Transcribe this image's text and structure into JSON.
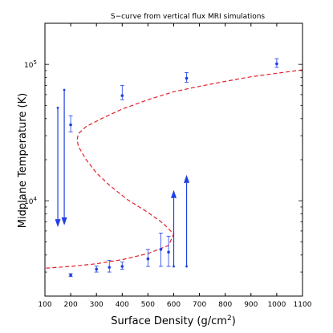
{
  "chart_data": {
    "type": "scatter",
    "title": "S−curve from vertical flux MRI simulations",
    "xlabel": "Surface Density (g/cm",
    "xlabel_superscript": "2",
    "xlabel_suffix": ")",
    "ylabel": "Midplane Temperature (K)",
    "xlim": [
      100,
      1100
    ],
    "ylim": [
      2000,
      200000
    ],
    "y_scale": "log",
    "grid": false,
    "x_ticks": [
      100,
      200,
      300,
      400,
      500,
      600,
      700,
      800,
      900,
      1000,
      1100
    ],
    "x_tick_labels": [
      "100",
      "200",
      "300",
      "400",
      "500",
      "600",
      "700",
      "800",
      "900",
      "1000",
      "1100"
    ],
    "y_ticks": [
      10000,
      100000
    ],
    "y_tick_labels": [
      {
        "base": "10",
        "exp": "4"
      },
      {
        "base": "10",
        "exp": "5"
      }
    ],
    "colors": {
      "points": "#1f3fe6",
      "curve": "#e0202a",
      "frame": "#000000"
    },
    "series": [
      {
        "style": "points-with-errorbars",
        "points": [
          {
            "x": 200,
            "y": 2850,
            "err_low": 2780,
            "err_high": 2920
          },
          {
            "x": 300,
            "y": 3150,
            "err_low": 3000,
            "err_high": 3320
          },
          {
            "x": 350,
            "y": 3250,
            "err_low": 3000,
            "err_high": 3650
          },
          {
            "x": 400,
            "y": 3300,
            "err_low": 3150,
            "err_high": 3550
          },
          {
            "x": 500,
            "y": 3750,
            "err_low": 3300,
            "err_high": 4400
          },
          {
            "x": 550,
            "y": 4400,
            "err_low": 3300,
            "err_high": 5800
          },
          {
            "x": 580,
            "y": 4200,
            "err_low": 3300,
            "err_high": 5500
          },
          {
            "x": 400,
            "y": 59000,
            "err_low": 55000,
            "err_high": 70000
          },
          {
            "x": 650,
            "y": 79000,
            "err_low": 74000,
            "err_high": 87000
          },
          {
            "x": 1000,
            "y": 101000,
            "err_low": 95000,
            "err_high": 110000
          },
          {
            "x": 200,
            "y": 36000,
            "err_low": 32000,
            "err_high": 42000
          }
        ]
      },
      {
        "style": "transition-arrows",
        "arrows": [
          {
            "x": 150,
            "y_start": 48000,
            "y_end": 6400
          },
          {
            "x": 175,
            "y_start": 65000,
            "y_end": 6600
          },
          {
            "x": 600,
            "y_start": 3300,
            "y_end": 12000
          },
          {
            "x": 650,
            "y_start": 3300,
            "y_end": 15500
          }
        ]
      },
      {
        "style": "dashed-curve",
        "x": [
          1100,
          1000,
          900,
          800,
          700,
          600,
          500,
          400,
          320,
          260,
          230,
          225,
          230,
          260,
          300,
          350,
          420,
          500,
          560,
          600,
          580,
          500,
          400,
          300,
          200,
          100
        ],
        "y": [
          91000,
          86000,
          81000,
          75000,
          69000,
          63000,
          55000,
          47000,
          40000,
          35000,
          31000,
          28000,
          25000,
          20000,
          16000,
          13000,
          10200,
          8200,
          6800,
          5700,
          4700,
          4100,
          3700,
          3450,
          3300,
          3200
        ]
      }
    ]
  }
}
